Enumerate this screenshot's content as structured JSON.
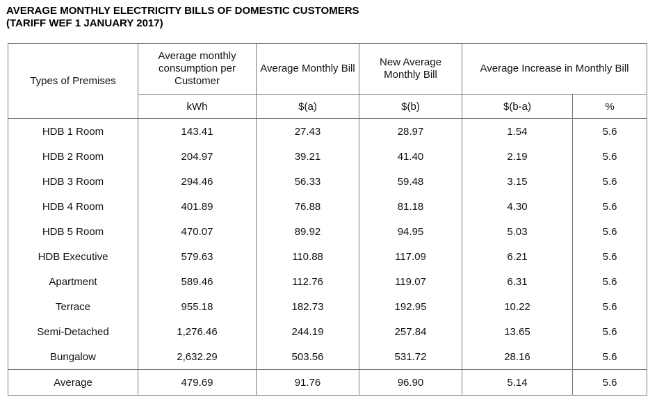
{
  "title": {
    "line1": "AVERAGE MONTHLY ELECTRICITY BILLS OF DOMESTIC CUSTOMERS",
    "line2": "(TARIFF WEF 1 JANUARY 2017)"
  },
  "table": {
    "headers": {
      "premises": "Types of Premises",
      "consumption": "Average monthly consumption per Customer",
      "avg_bill": "Average Monthly Bill",
      "new_avg_bill": "New Average Monthly Bill",
      "increase": "Average Increase in Monthly Bill"
    },
    "units": {
      "consumption": "kWh",
      "avg_bill": "$(a)",
      "new_avg_bill": "$(b)",
      "increase_abs": "$(b-a)",
      "increase_pct": "%"
    },
    "rows": [
      {
        "type": "HDB 1 Room",
        "kwh": "143.41",
        "a": "27.43",
        "b": "28.97",
        "diff": "1.54",
        "pct": "5.6"
      },
      {
        "type": "HDB 2 Room",
        "kwh": "204.97",
        "a": "39.21",
        "b": "41.40",
        "diff": "2.19",
        "pct": "5.6"
      },
      {
        "type": "HDB 3 Room",
        "kwh": "294.46",
        "a": "56.33",
        "b": "59.48",
        "diff": "3.15",
        "pct": "5.6"
      },
      {
        "type": "HDB 4 Room",
        "kwh": "401.89",
        "a": "76.88",
        "b": "81.18",
        "diff": "4.30",
        "pct": "5.6"
      },
      {
        "type": "HDB 5 Room",
        "kwh": "470.07",
        "a": "89.92",
        "b": "94.95",
        "diff": "5.03",
        "pct": "5.6"
      },
      {
        "type": "HDB Executive",
        "kwh": "579.63",
        "a": "110.88",
        "b": "117.09",
        "diff": "6.21",
        "pct": "5.6"
      },
      {
        "type": "Apartment",
        "kwh": "589.46",
        "a": "112.76",
        "b": "119.07",
        "diff": "6.31",
        "pct": "5.6"
      },
      {
        "type": "Terrace",
        "kwh": "955.18",
        "a": "182.73",
        "b": "192.95",
        "diff": "10.22",
        "pct": "5.6"
      },
      {
        "type": "Semi-Detached",
        "kwh": "1,276.46",
        "a": "244.19",
        "b": "257.84",
        "diff": "13.65",
        "pct": "5.6"
      },
      {
        "type": "Bungalow",
        "kwh": "2,632.29",
        "a": "503.56",
        "b": "531.72",
        "diff": "28.16",
        "pct": "5.6"
      }
    ],
    "average": {
      "type": "Average",
      "kwh": "479.69",
      "a": "91.76",
      "b": "96.90",
      "diff": "5.14",
      "pct": "5.6"
    }
  }
}
